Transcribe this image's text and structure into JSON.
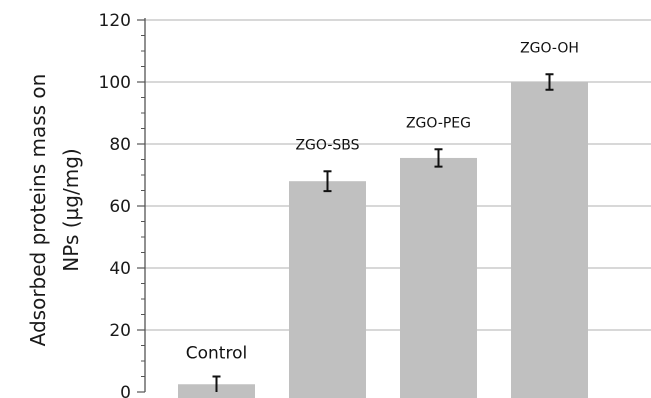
{
  "chart_data": {
    "type": "bar",
    "title": "",
    "xlabel": "",
    "ylabel_lines": [
      "Adsorbed proteins mass on",
      "NPs (µg/mg)"
    ],
    "categories": [
      "Control",
      "ZGO-SBS",
      "ZGO-PEG",
      "ZGO-OH"
    ],
    "values": [
      2.5,
      68,
      75.5,
      100
    ],
    "errors": [
      2.5,
      3.2,
      2.8,
      2.5
    ],
    "ylim": [
      0,
      120
    ],
    "yticks": [
      "0",
      "20",
      "40",
      "60",
      "80",
      "100",
      "120"
    ],
    "grid": true,
    "colors": {
      "bar": "#c0c0c0",
      "grid": "#b0b0b0",
      "axis": "#555555",
      "error": "#111111"
    }
  }
}
